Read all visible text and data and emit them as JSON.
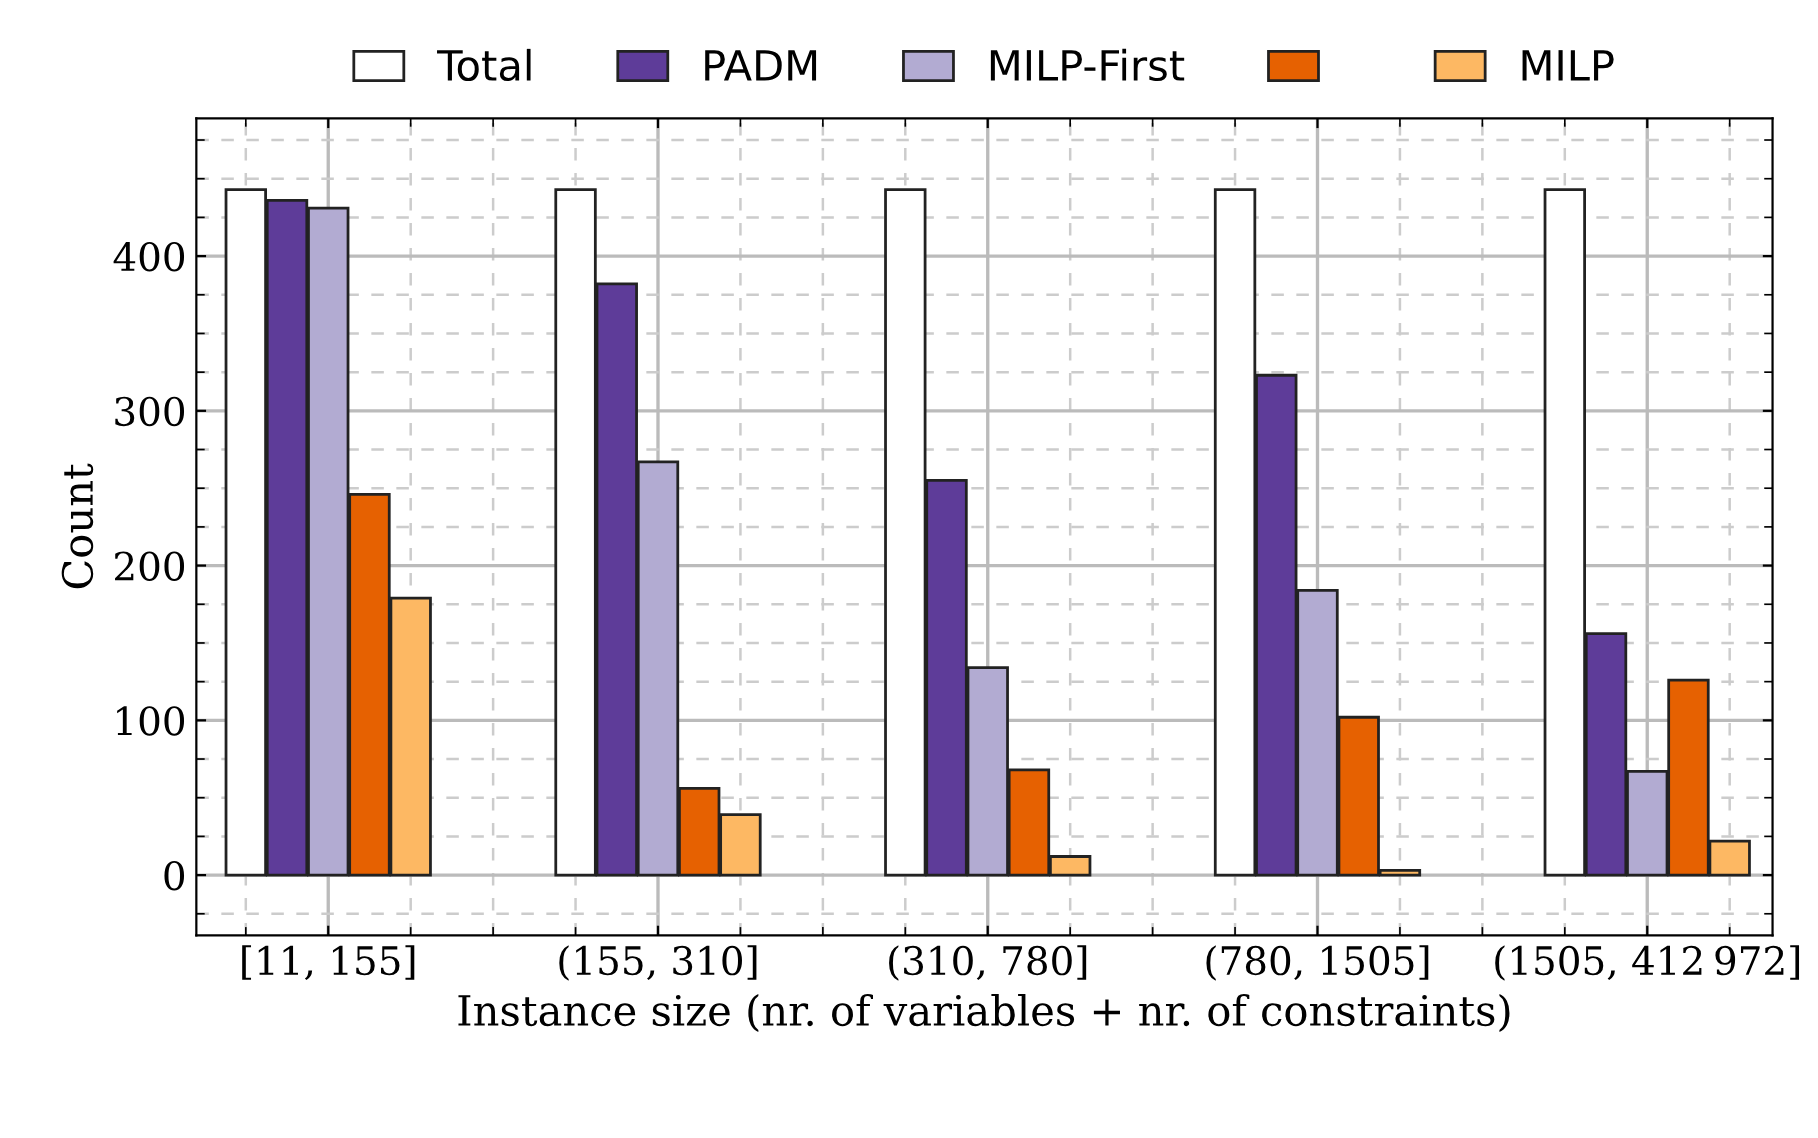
{
  "chart_data": {
    "type": "bar",
    "xlabel": "Instance size (nr. of variables + nr. of constraints)",
    "ylabel": "Count",
    "categories": [
      "[11, 155]",
      "(155, 310]",
      "(310, 780]",
      "(780, 1505]",
      "(1505, 412 972]"
    ],
    "series": [
      {
        "name": "Total",
        "color": "#ffffff",
        "values": [
          443,
          443,
          443,
          443,
          443
        ]
      },
      {
        "name": "PADM",
        "color": "#5e3c99",
        "values": [
          436,
          382,
          255,
          323,
          156
        ]
      },
      {
        "name": "MILP-First",
        "color": "#b2abd2",
        "values": [
          431,
          267,
          134,
          184,
          67
        ]
      },
      {
        "color": "#e66101",
        "values": [
          246,
          56,
          68,
          102,
          126
        ]
      },
      {
        "name": "MILP",
        "color": "#fdb863",
        "values": [
          179,
          39,
          12,
          3,
          22
        ]
      }
    ],
    "ylim": [
      -39,
      489
    ],
    "yticks": [
      0,
      100,
      200,
      300,
      400
    ],
    "grid": true,
    "legend": "top"
  }
}
